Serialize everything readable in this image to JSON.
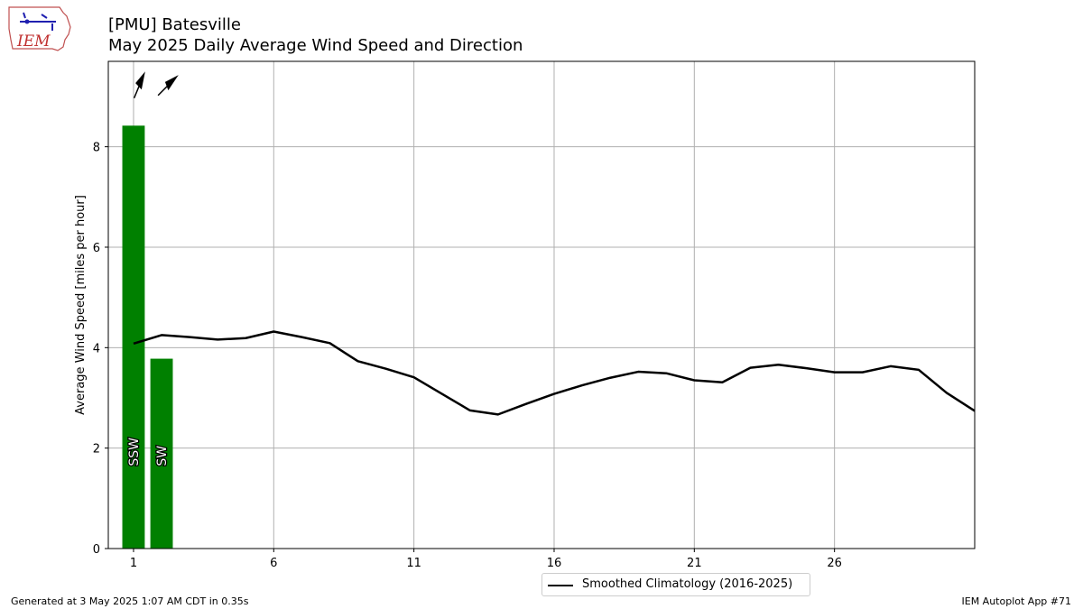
{
  "logo": {
    "text": "IEM"
  },
  "title": "[PMU] Batesville",
  "subtitle": "May 2025 Daily Average Wind Speed and Direction",
  "footer_left": "Generated at 3 May 2025 1:07 AM CDT in 0.35s",
  "footer_right": "IEM Autoplot App #71",
  "chart_data": {
    "type": "bar",
    "title": "[PMU] Batesville",
    "subtitle": "May 2025 Daily Average Wind Speed and Direction",
    "xlabel": "",
    "ylabel": "Average Wind Speed [miles per hour]",
    "xlim": [
      0.1,
      31.0
    ],
    "ylim": [
      0,
      9.7
    ],
    "xticks": [
      1,
      6,
      11,
      16,
      21,
      26
    ],
    "yticks": [
      0,
      2,
      4,
      6,
      8
    ],
    "grid": true,
    "legend_position": "bottom-center",
    "bar_color": "#008000",
    "bars": [
      {
        "day": 1,
        "value": 8.42,
        "direction": "SSW",
        "arrow_deg": 22.5
      },
      {
        "day": 2,
        "value": 3.78,
        "direction": "SW",
        "arrow_deg": 45
      }
    ],
    "series": [
      {
        "name": "Smoothed Climatology (2016-2025)",
        "type": "line",
        "color": "#000000",
        "x": [
          1,
          2,
          3,
          4,
          5,
          6,
          7,
          8,
          9,
          10,
          11,
          12,
          13,
          14,
          15,
          16,
          17,
          18,
          19,
          20,
          21,
          22,
          23,
          24,
          25,
          26,
          27,
          28,
          29,
          30,
          31
        ],
        "y": [
          4.08,
          4.25,
          4.21,
          4.16,
          4.19,
          4.32,
          4.21,
          4.09,
          3.73,
          3.58,
          3.41,
          3.08,
          2.75,
          2.67,
          2.88,
          3.08,
          3.25,
          3.4,
          3.52,
          3.49,
          3.35,
          3.31,
          3.6,
          3.66,
          3.59,
          3.51,
          3.51,
          3.63,
          3.56,
          3.1,
          2.74
        ]
      }
    ]
  }
}
